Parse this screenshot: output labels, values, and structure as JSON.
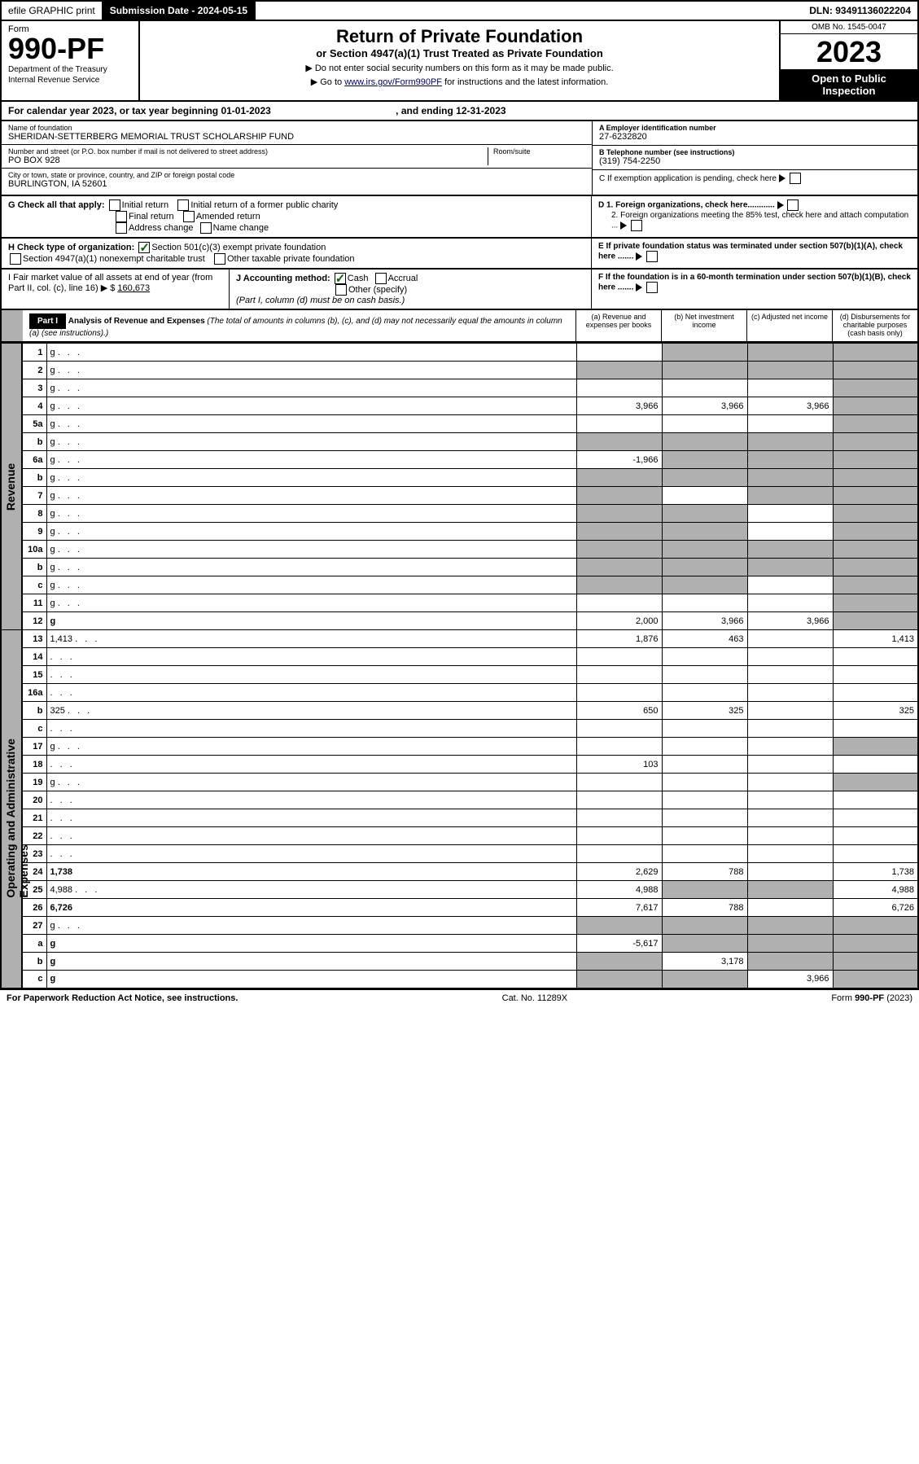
{
  "efile": {
    "print": "efile GRAPHIC print",
    "subdate_label": "Submission Date - 2024-05-15",
    "dln": "DLN: 93491136022204"
  },
  "header": {
    "form": "Form",
    "num": "990-PF",
    "dept": "Department of the Treasury",
    "irs": "Internal Revenue Service",
    "title": "Return of Private Foundation",
    "sub": "or Section 4947(a)(1) Trust Treated as Private Foundation",
    "note1": "▶ Do not enter social security numbers on this form as it may be made public.",
    "note2": "▶ Go to www.irs.gov/Form990PF for instructions and the latest information.",
    "omb": "OMB No. 1545-0047",
    "year": "2023",
    "open": "Open to Public Inspection"
  },
  "calyear": "For calendar year 2023, or tax year beginning 01-01-2023",
  "calyear_end": ", and ending 12-31-2023",
  "info": {
    "name_label": "Name of foundation",
    "name": "SHERIDAN-SETTERBERG MEMORIAL TRUST SCHOLARSHIP FUND",
    "addr_label": "Number and street (or P.O. box number if mail is not delivered to street address)",
    "room_label": "Room/suite",
    "addr": "PO BOX 928",
    "city_label": "City or town, state or province, country, and ZIP or foreign postal code",
    "city": "BURLINGTON, IA  52601",
    "A_label": "A Employer identification number",
    "A": "27-6232820",
    "B_label": "B Telephone number (see instructions)",
    "B": "(319) 754-2250",
    "C": "C If exemption application is pending, check here",
    "D1": "D 1. Foreign organizations, check here............",
    "D2": "2. Foreign organizations meeting the 85% test, check here and attach computation ...",
    "E": "E  If private foundation status was terminated under section 507(b)(1)(A), check here .......",
    "F": "F  If the foundation is in a 60-month termination under section 507(b)(1)(B), check here .......",
    "G": "G Check all that apply:",
    "G_opts": [
      "Initial return",
      "Initial return of a former public charity",
      "Final return",
      "Amended return",
      "Address change",
      "Name change"
    ],
    "H": "H Check type of organization:",
    "H1": "Section 501(c)(3) exempt private foundation",
    "H2": "Section 4947(a)(1) nonexempt charitable trust",
    "H3": "Other taxable private foundation",
    "I": "I Fair market value of all assets at end of year (from Part II, col. (c), line 16) ▶ $",
    "I_val": "160,673",
    "J": "J Accounting method:",
    "J1": "Cash",
    "J2": "Accrual",
    "J3": "Other (specify)",
    "J_note": "(Part I, column (d) must be on cash basis.)"
  },
  "part": {
    "num": "Part I",
    "title": "Analysis of Revenue and Expenses",
    "note": "(The total of amounts in columns (b), (c), and (d) may not necessarily equal the amounts in column (a) (see instructions).)",
    "cols": {
      "a": "(a)   Revenue and expenses per books",
      "b": "(b)   Net investment income",
      "c": "(c)   Adjusted net income",
      "d": "(d)   Disbursements for charitable purposes (cash basis only)"
    }
  },
  "sides": {
    "rev": "Revenue",
    "exp": "Operating and Administrative Expenses"
  },
  "rows": [
    {
      "n": "1",
      "d": "g",
      "a": "",
      "b": "g",
      "c": "g"
    },
    {
      "n": "2",
      "d": "g",
      "a": "g",
      "b": "g",
      "c": "g"
    },
    {
      "n": "3",
      "d": "g",
      "a": "",
      "b": "",
      "c": ""
    },
    {
      "n": "4",
      "d": "g",
      "a": "3,966",
      "b": "3,966",
      "c": "3,966"
    },
    {
      "n": "5a",
      "d": "g",
      "a": "",
      "b": "",
      "c": ""
    },
    {
      "n": "b",
      "d": "g",
      "a": "g",
      "b": "g",
      "c": "g"
    },
    {
      "n": "6a",
      "d": "g",
      "a": "-1,966",
      "b": "g",
      "c": "g"
    },
    {
      "n": "b",
      "d": "g",
      "a": "g",
      "b": "g",
      "c": "g"
    },
    {
      "n": "7",
      "d": "g",
      "a": "g",
      "b": "",
      "c": "g"
    },
    {
      "n": "8",
      "d": "g",
      "a": "g",
      "b": "g",
      "c": ""
    },
    {
      "n": "9",
      "d": "g",
      "a": "g",
      "b": "g",
      "c": ""
    },
    {
      "n": "10a",
      "d": "g",
      "a": "g",
      "b": "g",
      "c": "g"
    },
    {
      "n": "b",
      "d": "g",
      "a": "g",
      "b": "g",
      "c": "g"
    },
    {
      "n": "c",
      "d": "g",
      "a": "g",
      "b": "g",
      "c": ""
    },
    {
      "n": "11",
      "d": "g",
      "a": "",
      "b": "",
      "c": ""
    },
    {
      "n": "12",
      "d": "g",
      "bold": true,
      "a": "2,000",
      "b": "3,966",
      "c": "3,966"
    },
    {
      "n": "13",
      "d": "1,413",
      "a": "1,876",
      "b": "463",
      "c": "",
      "sec": "exp"
    },
    {
      "n": "14",
      "d": "",
      "a": "",
      "b": "",
      "c": ""
    },
    {
      "n": "15",
      "d": "",
      "a": "",
      "b": "",
      "c": ""
    },
    {
      "n": "16a",
      "d": "",
      "a": "",
      "b": "",
      "c": ""
    },
    {
      "n": "b",
      "d": "325",
      "a": "650",
      "b": "325",
      "c": ""
    },
    {
      "n": "c",
      "d": "",
      "a": "",
      "b": "",
      "c": ""
    },
    {
      "n": "17",
      "d": "g",
      "a": "",
      "b": "",
      "c": ""
    },
    {
      "n": "18",
      "d": "",
      "a": "103",
      "b": "",
      "c": ""
    },
    {
      "n": "19",
      "d": "g",
      "a": "",
      "b": "",
      "c": ""
    },
    {
      "n": "20",
      "d": "",
      "a": "",
      "b": "",
      "c": ""
    },
    {
      "n": "21",
      "d": "",
      "a": "",
      "b": "",
      "c": ""
    },
    {
      "n": "22",
      "d": "",
      "a": "",
      "b": "",
      "c": ""
    },
    {
      "n": "23",
      "d": "",
      "a": "",
      "b": "",
      "c": ""
    },
    {
      "n": "24",
      "d": "1,738",
      "bold": true,
      "a": "2,629",
      "b": "788",
      "c": ""
    },
    {
      "n": "25",
      "d": "4,988",
      "a": "4,988",
      "b": "g",
      "c": "g"
    },
    {
      "n": "26",
      "d": "6,726",
      "bold": true,
      "a": "7,617",
      "b": "788",
      "c": ""
    },
    {
      "n": "27",
      "d": "g",
      "a": "g",
      "b": "g",
      "c": "g"
    },
    {
      "n": "a",
      "d": "g",
      "bold": true,
      "a": "-5,617",
      "b": "g",
      "c": "g"
    },
    {
      "n": "b",
      "d": "g",
      "bold": true,
      "a": "g",
      "b": "3,178",
      "c": "g"
    },
    {
      "n": "c",
      "d": "g",
      "bold": true,
      "a": "g",
      "b": "g",
      "c": "3,966"
    }
  ],
  "footer": {
    "left": "For Paperwork Reduction Act Notice, see instructions.",
    "mid": "Cat. No. 11289X",
    "right": "Form 990-PF (2023)"
  }
}
